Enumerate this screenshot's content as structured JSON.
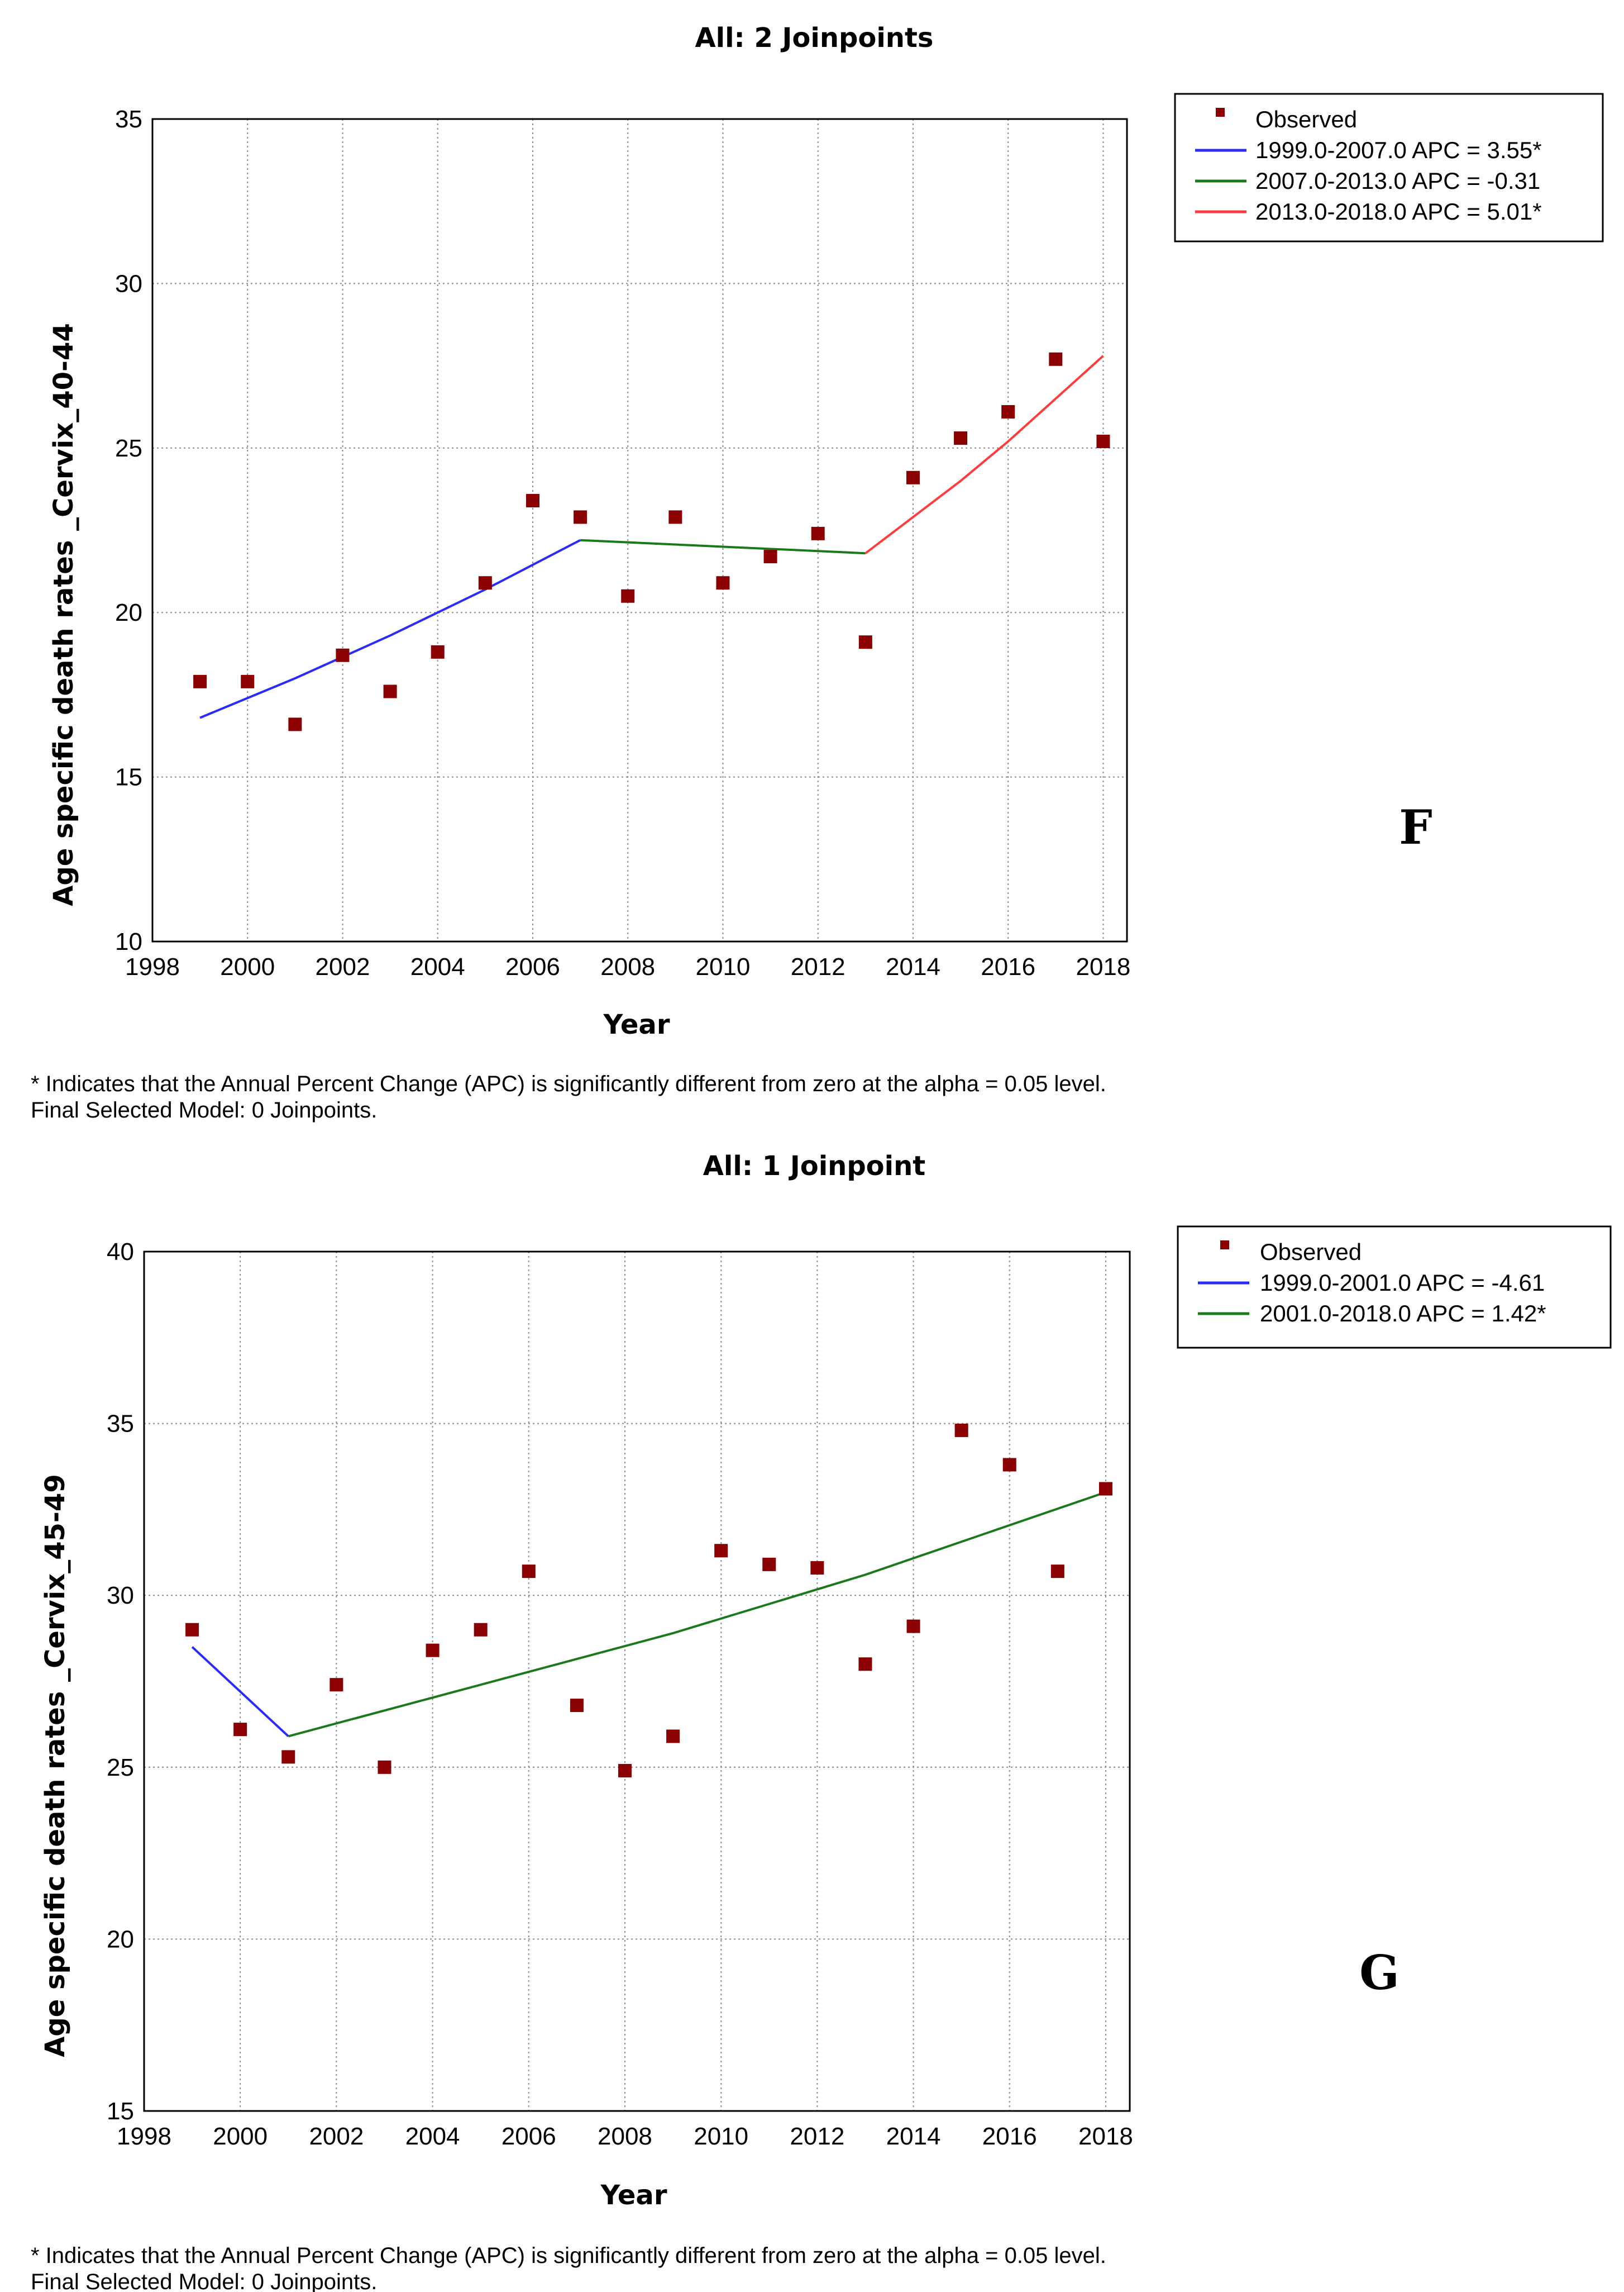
{
  "chart_data": [
    {
      "type": "scatter",
      "panel_letter": "F",
      "title": "All: 2 Joinpoints",
      "xlabel": "Year",
      "ylabel": "Age specific death rates _Cervix_40-44",
      "xlim": [
        1998,
        2018.5
      ],
      "ylim": [
        10,
        35
      ],
      "xticks": [
        1998,
        2000,
        2002,
        2004,
        2006,
        2008,
        2010,
        2012,
        2014,
        2016,
        2018
      ],
      "yticks": [
        10,
        15,
        20,
        25,
        30,
        35
      ],
      "grid": true,
      "legend_position": "top-right",
      "observed_label": "Observed",
      "observed_color": "#8b0000",
      "observed": {
        "x": [
          1999,
          2000,
          2001,
          2002,
          2003,
          2004,
          2005,
          2006,
          2007,
          2008,
          2009,
          2010,
          2011,
          2012,
          2013,
          2014,
          2015,
          2016,
          2017,
          2018
        ],
        "y": [
          17.9,
          17.9,
          16.6,
          18.7,
          17.6,
          18.8,
          20.9,
          23.4,
          22.9,
          20.5,
          22.9,
          20.9,
          21.7,
          22.4,
          19.1,
          24.1,
          25.3,
          26.1,
          27.7,
          25.2
        ]
      },
      "series": [
        {
          "name": "1999.0-2007.0 APC  =  3.55*",
          "color": "#2a2aff",
          "x": [
            1999,
            2001,
            2003,
            2005,
            2007
          ],
          "y": [
            16.8,
            18.0,
            19.3,
            20.7,
            22.2
          ]
        },
        {
          "name": "2007.0-2013.0 APC  = -0.31",
          "color": "#1a7a1a",
          "x": [
            2007,
            2013
          ],
          "y": [
            22.2,
            21.8
          ]
        },
        {
          "name": "2013.0-2018.0 APC  =  5.01*",
          "color": "#ff3b3b",
          "x": [
            2013,
            2014,
            2015,
            2016,
            2017,
            2018
          ],
          "y": [
            21.8,
            22.9,
            24.0,
            25.2,
            26.5,
            27.8
          ]
        }
      ],
      "footnote_line1": "* Indicates that the Annual Percent Change (APC) is significantly different from zero at the alpha = 0.05 level.",
      "footnote_line2": "Final Selected Model: 0 Joinpoints."
    },
    {
      "type": "scatter",
      "panel_letter": "G",
      "title": "All: 1 Joinpoint",
      "xlabel": "Year",
      "ylabel": "Age specific death rates _Cervix_45-49",
      "xlim": [
        1998,
        2018.5
      ],
      "ylim": [
        15,
        40
      ],
      "xticks": [
        1998,
        2000,
        2002,
        2004,
        2006,
        2008,
        2010,
        2012,
        2014,
        2016,
        2018
      ],
      "yticks": [
        15,
        20,
        25,
        30,
        35,
        40
      ],
      "grid": true,
      "legend_position": "top-right",
      "observed_label": "Observed",
      "observed_color": "#8b0000",
      "observed": {
        "x": [
          1999,
          2000,
          2001,
          2002,
          2003,
          2004,
          2005,
          2006,
          2007,
          2008,
          2009,
          2010,
          2011,
          2012,
          2013,
          2014,
          2015,
          2016,
          2017,
          2018
        ],
        "y": [
          29.0,
          26.1,
          25.3,
          27.4,
          25.0,
          28.4,
          29.0,
          30.7,
          26.8,
          24.9,
          25.9,
          31.3,
          30.9,
          30.8,
          28.0,
          29.1,
          34.8,
          33.8,
          30.7,
          33.1
        ]
      },
      "series": [
        {
          "name": "1999.0-2001.0 APC  = -4.61",
          "color": "#2a2aff",
          "x": [
            1999,
            2001
          ],
          "y": [
            28.5,
            25.9
          ]
        },
        {
          "name": "2001.0-2018.0 APC  =  1.42*",
          "color": "#1a7a1a",
          "x": [
            2001,
            2005,
            2009,
            2013,
            2018
          ],
          "y": [
            25.9,
            27.4,
            28.9,
            30.6,
            33.0
          ]
        }
      ],
      "footnote_line1": "* Indicates that the Annual Percent Change (APC) is significantly different from zero at the alpha = 0.05 level.",
      "footnote_line2": "Final Selected Model: 0 Joinpoints."
    }
  ]
}
